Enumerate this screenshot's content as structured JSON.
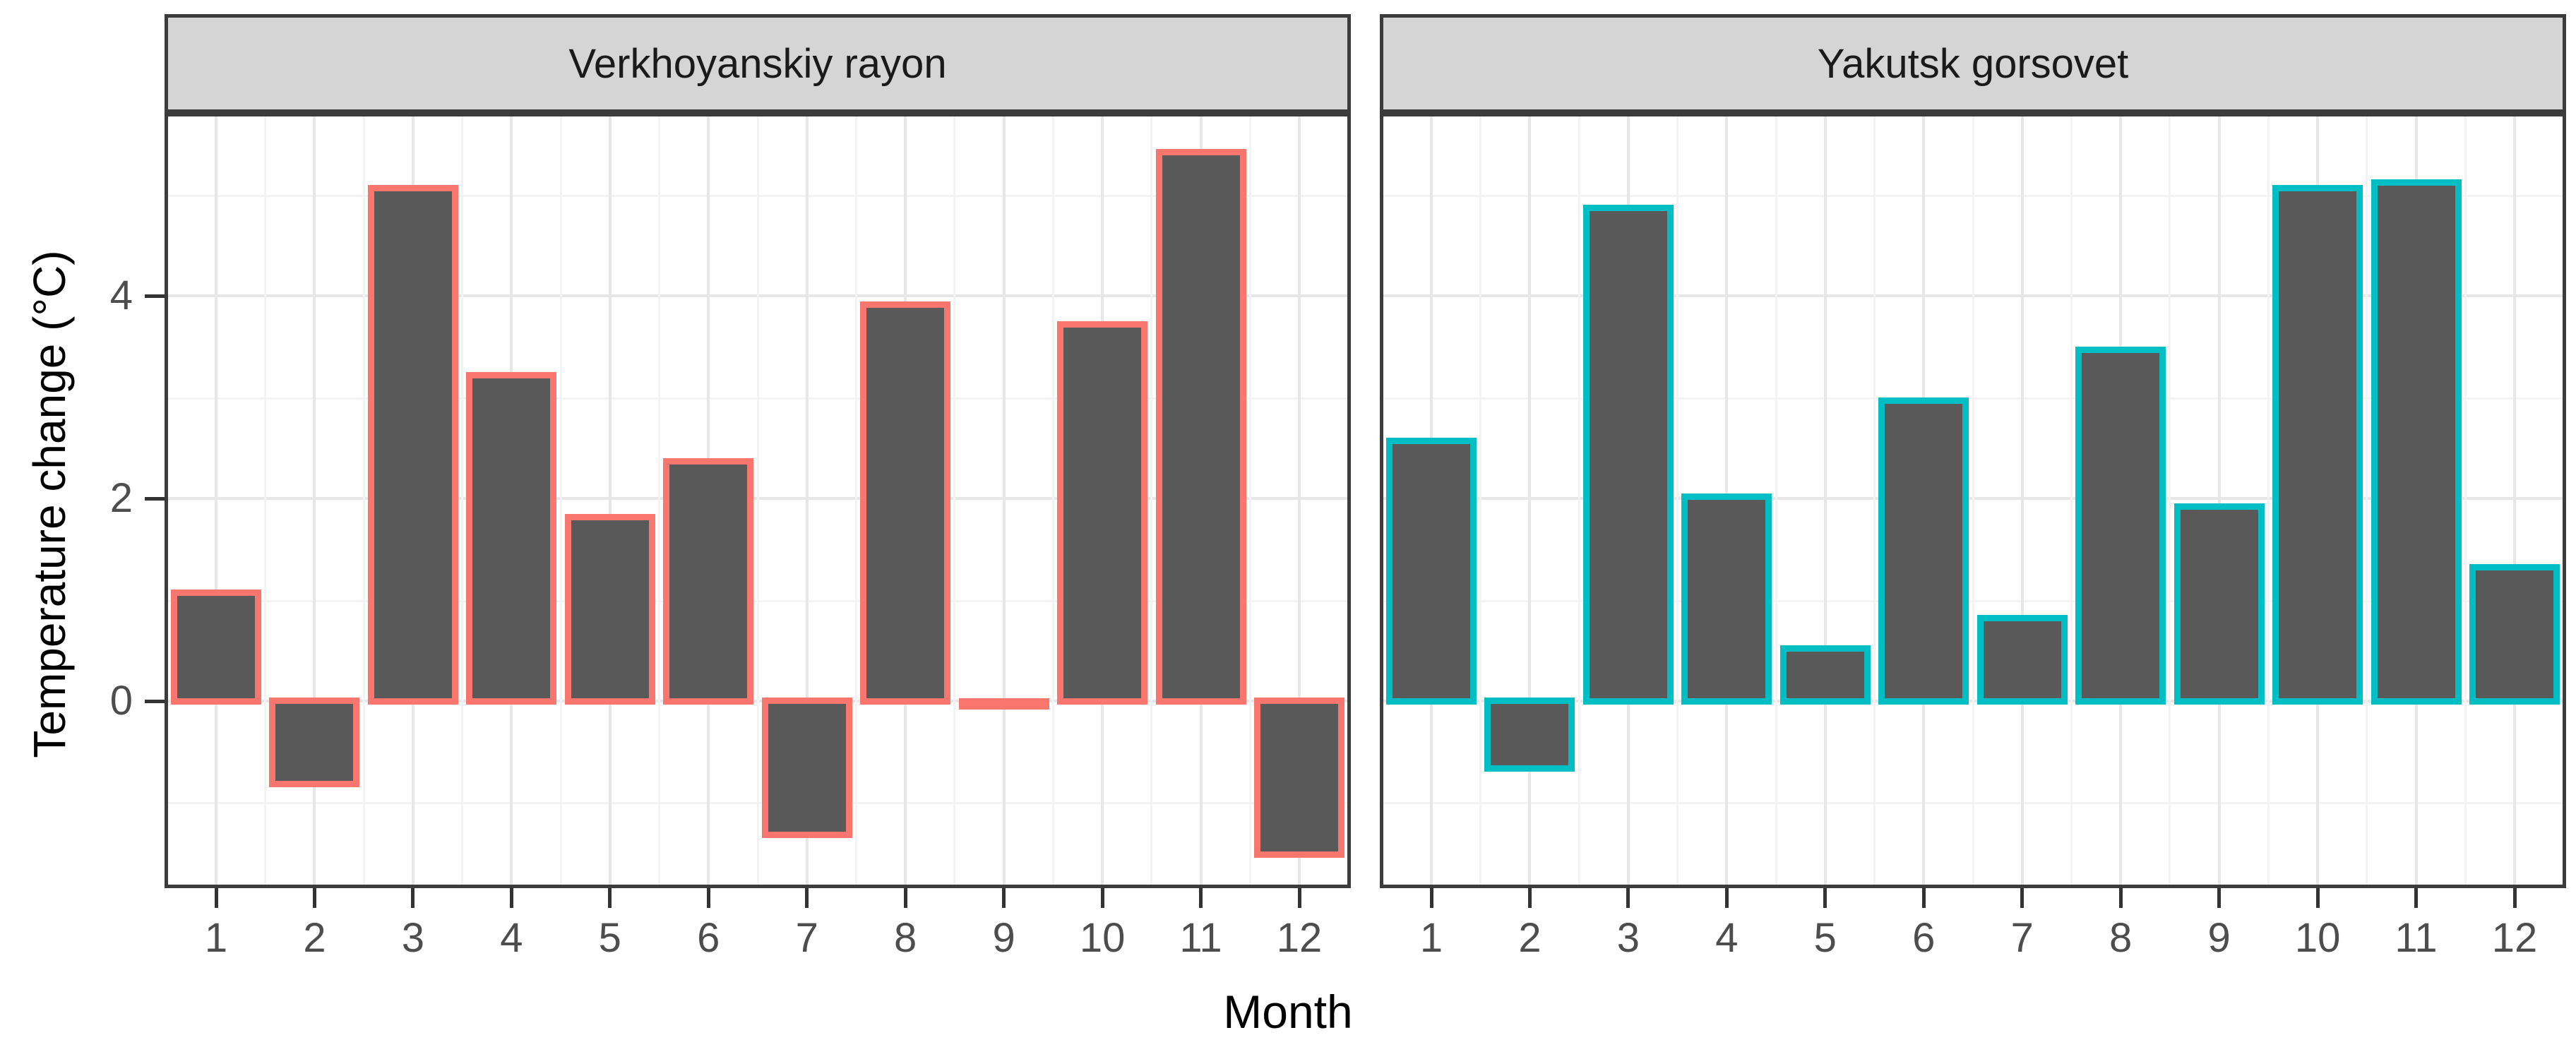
{
  "chart_data": {
    "type": "bar",
    "title": "",
    "xlabel": "Month",
    "ylabel": "Temperature change (°C)",
    "categories": [
      "1",
      "2",
      "3",
      "4",
      "5",
      "6",
      "7",
      "8",
      "9",
      "10",
      "11",
      "12"
    ],
    "series": [
      {
        "name": "Verkhoyanskiy rayon",
        "outline_color": "#F8766D",
        "values": [
          1.1,
          -0.85,
          5.1,
          3.25,
          1.85,
          2.4,
          -1.35,
          3.95,
          -0.05,
          3.75,
          5.45,
          -1.55
        ]
      },
      {
        "name": "Yakutsk gorsovet",
        "outline_color": "#00BFC4",
        "values": [
          2.6,
          -0.7,
          4.9,
          2.05,
          0.55,
          3.0,
          0.85,
          3.5,
          1.95,
          5.1,
          5.15,
          1.35
        ]
      }
    ],
    "y_ticks": [
      "0",
      "2",
      "4"
    ],
    "y_tick_values": [
      0,
      2,
      4
    ],
    "y_minor_values": [
      -1,
      1,
      3,
      5
    ],
    "ylim": [
      -1.85,
      5.83
    ],
    "grid": true,
    "legend_position": "none",
    "bar_fill": "#595959",
    "colors": {
      "strip_bg": "#d5d5d5",
      "panel_border": "#3c3c3c",
      "grid_major": "#e7e7e7",
      "grid_minor": "#f3f3f3",
      "axis_text": "#4d4d4d",
      "tick_mark": "#333333",
      "title_text": "#000000"
    }
  }
}
